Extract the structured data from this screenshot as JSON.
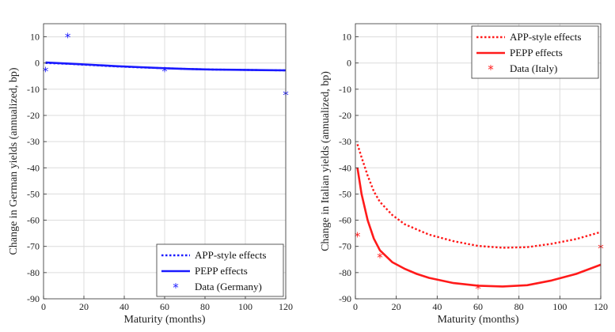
{
  "chart_data": [
    {
      "type": "line",
      "xlabel": "Maturity (months)",
      "ylabel": "Change in German yields (annualized, bp)",
      "xlim": [
        0,
        120
      ],
      "ylim": [
        -90,
        15
      ],
      "xticks": [
        0,
        20,
        40,
        60,
        80,
        100,
        120
      ],
      "yticks": [
        10,
        0,
        -10,
        -20,
        -30,
        -40,
        -50,
        -60,
        -70,
        -80,
        -90
      ],
      "grid": true,
      "legend_position": "bottom-right",
      "color": "#1a1aff",
      "series": [
        {
          "name": "APP-style effects",
          "style": "dotted",
          "x": [
            1,
            12,
            24,
            36,
            48,
            60,
            72,
            84,
            96,
            108,
            120
          ],
          "y": [
            0,
            -0.3,
            -0.8,
            -1.3,
            -1.7,
            -2.0,
            -2.3,
            -2.5,
            -2.6,
            -2.7,
            -2.8
          ]
        },
        {
          "name": "PEPP effects",
          "style": "solid",
          "x": [
            1,
            12,
            24,
            36,
            48,
            60,
            72,
            84,
            96,
            108,
            120
          ],
          "y": [
            0.2,
            -0.2,
            -0.7,
            -1.2,
            -1.6,
            -2.0,
            -2.3,
            -2.5,
            -2.6,
            -2.7,
            -2.8
          ]
        },
        {
          "name": "Data (Germany)",
          "style": "marker",
          "x": [
            1,
            12,
            60,
            120
          ],
          "y": [
            -3,
            10,
            -3,
            -12
          ]
        }
      ]
    },
    {
      "type": "line",
      "xlabel": "Maturity (months)",
      "ylabel": "Change in Italian yields (annualized, bp)",
      "xlim": [
        0,
        120
      ],
      "ylim": [
        -90,
        15
      ],
      "xticks": [
        0,
        20,
        40,
        60,
        80,
        100,
        120
      ],
      "yticks": [
        10,
        0,
        -10,
        -20,
        -30,
        -40,
        -50,
        -60,
        -70,
        -80,
        -90
      ],
      "grid": true,
      "legend_position": "top-right",
      "color": "#ff1a1a",
      "series": [
        {
          "name": "APP-style effects",
          "style": "dotted",
          "x": [
            1,
            3,
            6,
            9,
            12,
            18,
            24,
            30,
            36,
            48,
            60,
            72,
            84,
            96,
            108,
            120
          ],
          "y": [
            -31,
            -36,
            -43,
            -49,
            -53,
            -58,
            -61.5,
            -63.5,
            -65.5,
            -68,
            -69.8,
            -70.5,
            -70.3,
            -69,
            -67.2,
            -64.5
          ]
        },
        {
          "name": "PEPP effects",
          "style": "solid",
          "x": [
            1,
            3,
            6,
            9,
            12,
            18,
            24,
            30,
            36,
            48,
            60,
            72,
            84,
            96,
            108,
            120
          ],
          "y": [
            -40,
            -50,
            -60,
            -67,
            -71.5,
            -76,
            -78.5,
            -80.5,
            -82,
            -84,
            -85,
            -85.3,
            -84.8,
            -83,
            -80.5,
            -77
          ]
        },
        {
          "name": "Data (Italy)",
          "style": "marker",
          "x": [
            1,
            12,
            60,
            120
          ],
          "y": [
            -66,
            -74,
            -86,
            -70.5
          ]
        }
      ]
    }
  ]
}
